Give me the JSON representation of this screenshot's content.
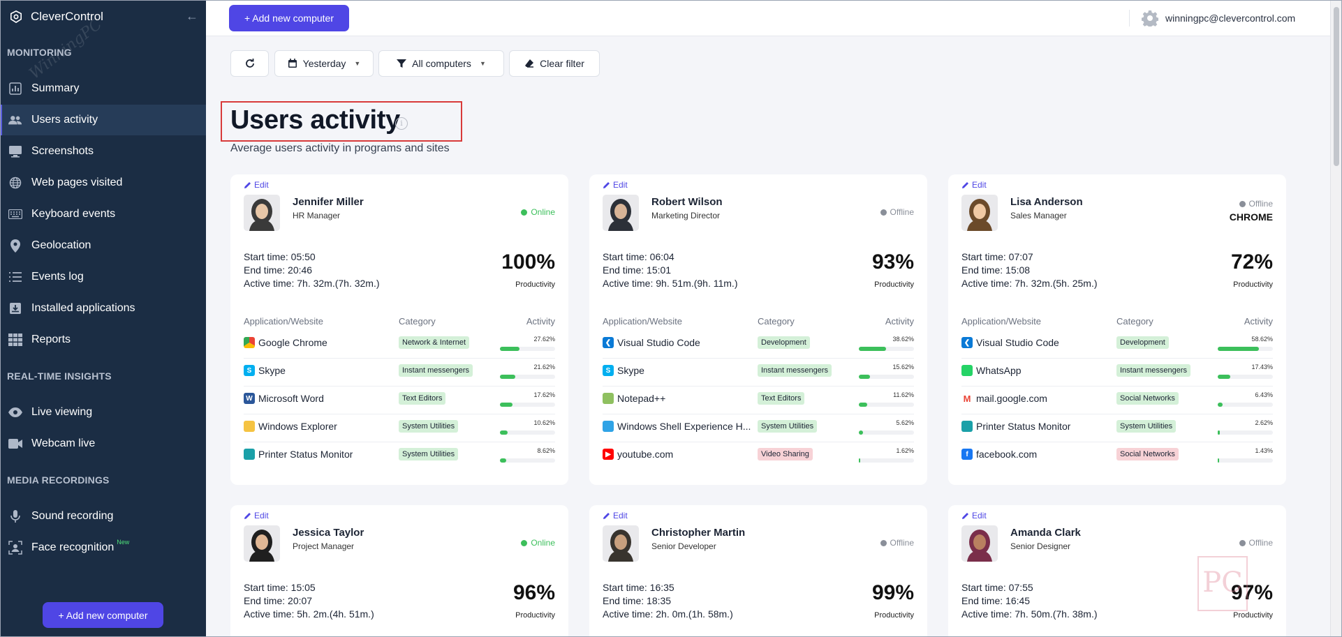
{
  "app": {
    "name": "CleverControl",
    "watermark": "WinningPC"
  },
  "sidebar": {
    "sections": [
      "MONITORING",
      "REAL-TIME INSIGHTS",
      "MEDIA RECORDINGS"
    ],
    "items": [
      {
        "label": "Summary",
        "icon": "bar-chart-icon"
      },
      {
        "label": "Users activity",
        "icon": "users-icon",
        "active": true
      },
      {
        "label": "Screenshots",
        "icon": "monitor-icon"
      },
      {
        "label": "Web pages visited",
        "icon": "globe-icon"
      },
      {
        "label": "Keyboard events",
        "icon": "keyboard-icon"
      },
      {
        "label": "Geolocation",
        "icon": "map-pin-icon"
      },
      {
        "label": "Events log",
        "icon": "list-icon"
      },
      {
        "label": "Installed applications",
        "icon": "download-box-icon"
      },
      {
        "label": "Reports",
        "icon": "grid-icon"
      },
      {
        "label": "Live viewing",
        "icon": "eye-icon"
      },
      {
        "label": "Webcam live",
        "icon": "video-icon"
      },
      {
        "label": "Sound recording",
        "icon": "microphone-icon"
      },
      {
        "label": "Face recognition",
        "icon": "face-scan-icon",
        "badge": "New"
      }
    ],
    "add_button": "+ Add new computer"
  },
  "topbar": {
    "add_button": "+ Add new computer",
    "user_email": "winningpc@clevercontrol.com"
  },
  "filters": {
    "date": "Yesterday",
    "computers": "All computers",
    "clear": "Clear filter"
  },
  "page": {
    "title": "Users activity",
    "subtitle": "Average users activity in programs and sites"
  },
  "table_headers": {
    "app": "Application/Website",
    "category": "Category",
    "activity": "Activity"
  },
  "colors": {
    "accent": "#4f46e5",
    "sidebar": "#1b2d44",
    "online": "#3cbf5b",
    "offline": "#8a8f99",
    "highlight": "#d83a3a"
  },
  "cards": [
    {
      "edit": "Edit",
      "name": "Jennifer Miller",
      "role": "HR Manager",
      "status": "Online",
      "current_app": "",
      "start": "Start time: 05:50",
      "end": "End time: 20:46",
      "active": "Active time: 7h. 32m.(7h. 32m.)",
      "productivity": "100%",
      "productivity_label": "Productivity",
      "apps": [
        {
          "name": "Google Chrome",
          "icon": "chrome-icon",
          "category": "Network & Internet",
          "cat_color": "green",
          "pct": "27.62%",
          "value": 27.62
        },
        {
          "name": "Skype",
          "icon": "skype-icon",
          "category": "Instant messengers",
          "cat_color": "green",
          "pct": "21.62%",
          "value": 21.62
        },
        {
          "name": "Microsoft Word",
          "icon": "word-icon",
          "category": "Text Editors",
          "cat_color": "green",
          "pct": "17.62%",
          "value": 17.62
        },
        {
          "name": "Windows Explorer",
          "icon": "folder-icon",
          "category": "System Utilities",
          "cat_color": "green",
          "pct": "10.62%",
          "value": 10.62
        },
        {
          "name": "Printer Status Monitor",
          "icon": "printer-icon",
          "category": "System Utilities",
          "cat_color": "green",
          "pct": "8.62%",
          "value": 8.62
        }
      ]
    },
    {
      "edit": "Edit",
      "name": "Robert Wilson",
      "role": "Marketing Director",
      "status": "Offline",
      "current_app": "",
      "start": "Start time: 06:04",
      "end": "End time: 15:01",
      "active": "Active time: 9h. 51m.(9h. 11m.)",
      "productivity": "93%",
      "productivity_label": "Productivity",
      "apps": [
        {
          "name": "Visual Studio Code",
          "icon": "vscode-icon",
          "category": "Development",
          "cat_color": "green",
          "pct": "38.62%",
          "value": 38.62
        },
        {
          "name": "Skype",
          "icon": "skype-icon",
          "category": "Instant messengers",
          "cat_color": "green",
          "pct": "15.62%",
          "value": 15.62
        },
        {
          "name": "Notepad++",
          "icon": "notepad-icon",
          "category": "Text Editors",
          "cat_color": "green",
          "pct": "11.62%",
          "value": 11.62
        },
        {
          "name": "Windows Shell Experience H...",
          "icon": "windows-shell-icon",
          "category": "System Utilities",
          "cat_color": "green",
          "pct": "5.62%",
          "value": 5.62
        },
        {
          "name": "youtube.com",
          "icon": "youtube-icon",
          "category": "Video Sharing",
          "cat_color": "red",
          "pct": "1.62%",
          "value": 1.62
        }
      ]
    },
    {
      "edit": "Edit",
      "name": "Lisa Anderson",
      "role": "Sales Manager",
      "status": "Offline",
      "current_app": "CHROME",
      "start": "Start time: 07:07",
      "end": "End time: 15:08",
      "active": "Active time: 7h. 32m.(5h. 25m.)",
      "productivity": "72%",
      "productivity_label": "Productivity",
      "apps": [
        {
          "name": "Visual Studio Code",
          "icon": "vscode-icon",
          "category": "Development",
          "cat_color": "green",
          "pct": "58.62%",
          "value": 58.62
        },
        {
          "name": "WhatsApp",
          "icon": "whatsapp-icon",
          "category": "Instant messengers",
          "cat_color": "green",
          "pct": "17.43%",
          "value": 17.43
        },
        {
          "name": "mail.google.com",
          "icon": "gmail-icon",
          "category": "Social Networks",
          "cat_color": "green",
          "pct": "6.43%",
          "value": 6.43
        },
        {
          "name": "Printer Status Monitor",
          "icon": "printer-icon",
          "category": "System Utilities",
          "cat_color": "green",
          "pct": "2.62%",
          "value": 2.62
        },
        {
          "name": "facebook.com",
          "icon": "facebook-icon",
          "category": "Social Networks",
          "cat_color": "red",
          "pct": "1.43%",
          "value": 1.43
        }
      ]
    },
    {
      "edit": "Edit",
      "name": "Jessica Taylor",
      "role": "Project Manager",
      "status": "Online",
      "current_app": "",
      "start": "Start time: 15:05",
      "end": "End time: 20:07",
      "active": "Active time: 5h. 2m.(4h. 51m.)",
      "productivity": "96%",
      "productivity_label": "Productivity",
      "apps": []
    },
    {
      "edit": "Edit",
      "name": "Christopher Martin",
      "role": "Senior Developer",
      "status": "Offline",
      "current_app": "",
      "start": "Start time: 16:35",
      "end": "End time: 18:35",
      "active": "Active time: 2h. 0m.(1h. 58m.)",
      "productivity": "99%",
      "productivity_label": "Productivity",
      "apps": []
    },
    {
      "edit": "Edit",
      "name": "Amanda Clark",
      "role": "Senior Designer",
      "status": "Offline",
      "current_app": "",
      "start": "Start time: 07:55",
      "end": "End time: 16:45",
      "active": "Active time: 7h. 50m.(7h. 38m.)",
      "productivity": "97%",
      "productivity_label": "Productivity",
      "apps": []
    }
  ]
}
